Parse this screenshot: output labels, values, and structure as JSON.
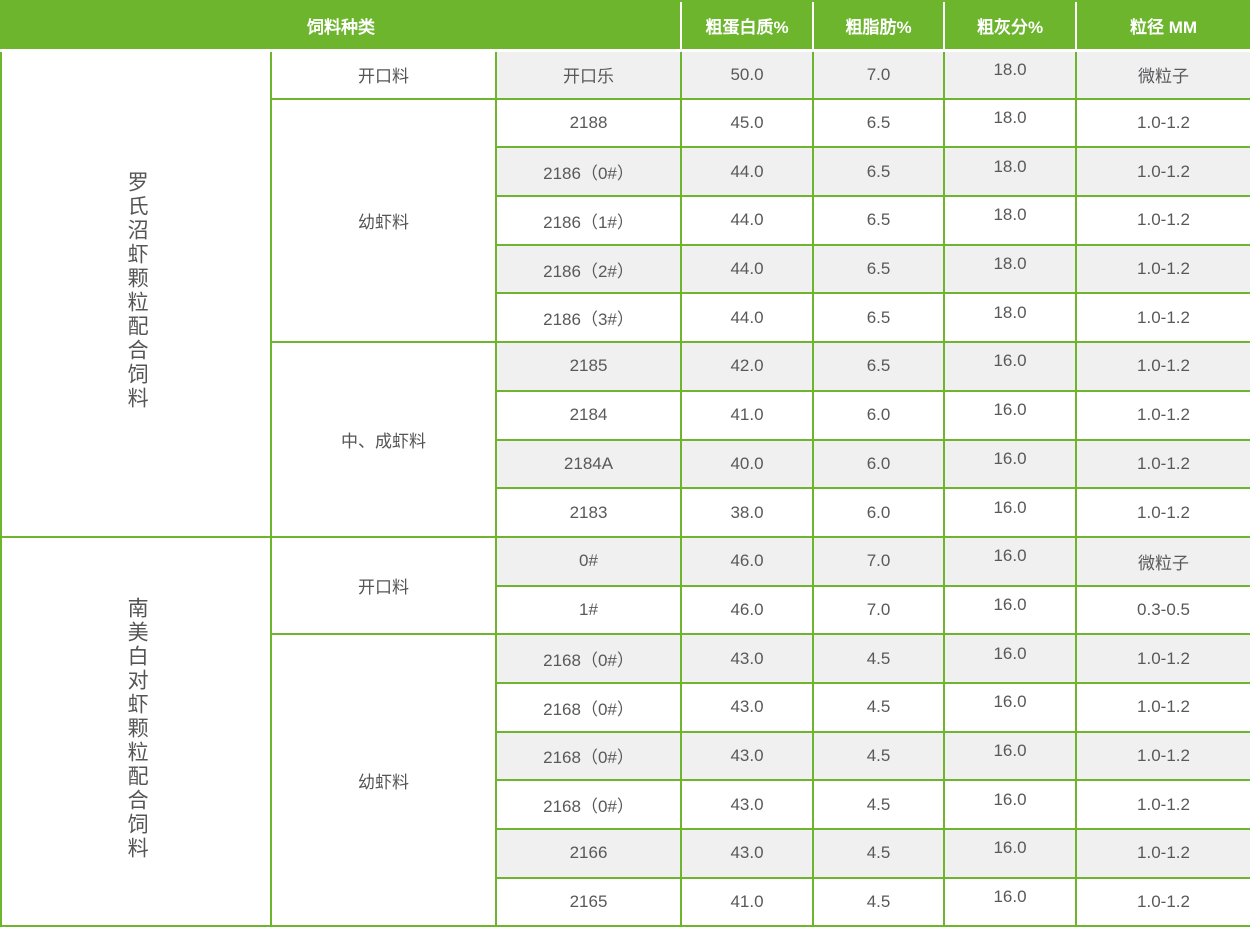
{
  "header": {
    "feed_type": "饲料种类",
    "protein": "粗蛋白质%",
    "fat": "粗脂肪%",
    "ash": "粗灰分%",
    "size": "粒径 MM"
  },
  "groups": [
    {
      "name": "罗氏沼虾颗粒配合饲料",
      "subgroups": [
        {
          "name": "开口料",
          "rows": [
            {
              "product": "开口乐",
              "protein": "50.0",
              "fat": "7.0",
              "ash": "18.0",
              "size": "微粒子"
            }
          ]
        },
        {
          "name": "幼虾料",
          "rows": [
            {
              "product": "2188",
              "protein": "45.0",
              "fat": "6.5",
              "ash": "18.0",
              "size": "1.0-1.2"
            },
            {
              "product": "2186（0#）",
              "protein": "44.0",
              "fat": "6.5",
              "ash": "18.0",
              "size": "1.0-1.2"
            },
            {
              "product": "2186（1#）",
              "protein": "44.0",
              "fat": "6.5",
              "ash": "18.0",
              "size": "1.0-1.2"
            },
            {
              "product": "2186（2#）",
              "protein": "44.0",
              "fat": "6.5",
              "ash": "18.0",
              "size": "1.0-1.2"
            },
            {
              "product": "2186（3#）",
              "protein": "44.0",
              "fat": "6.5",
              "ash": "18.0",
              "size": "1.0-1.2"
            }
          ]
        },
        {
          "name": "中、成虾料",
          "rows": [
            {
              "product": "2185",
              "protein": "42.0",
              "fat": "6.5",
              "ash": "16.0",
              "size": "1.0-1.2"
            },
            {
              "product": "2184",
              "protein": "41.0",
              "fat": "6.0",
              "ash": "16.0",
              "size": "1.0-1.2"
            },
            {
              "product": "2184A",
              "protein": "40.0",
              "fat": "6.0",
              "ash": "16.0",
              "size": "1.0-1.2"
            },
            {
              "product": "2183",
              "protein": "38.0",
              "fat": "6.0",
              "ash": "16.0",
              "size": "1.0-1.2"
            }
          ]
        }
      ]
    },
    {
      "name": "南美白对虾颗粒配合饲料",
      "subgroups": [
        {
          "name": "开口料",
          "rows": [
            {
              "product": "0#",
              "protein": "46.0",
              "fat": "7.0",
              "ash": "16.0",
              "size": "微粒子"
            },
            {
              "product": "1#",
              "protein": "46.0",
              "fat": "7.0",
              "ash": "16.0",
              "size": "0.3-0.5"
            }
          ]
        },
        {
          "name": "幼虾料",
          "rows": [
            {
              "product": "2168（0#）",
              "protein": "43.0",
              "fat": "4.5",
              "ash": "16.0",
              "size": "1.0-1.2"
            },
            {
              "product": "2168（0#）",
              "protein": "43.0",
              "fat": "4.5",
              "ash": "16.0",
              "size": "1.0-1.2"
            },
            {
              "product": "2168（0#）",
              "protein": "43.0",
              "fat": "4.5",
              "ash": "16.0",
              "size": "1.0-1.2"
            },
            {
              "product": "2168（0#）",
              "protein": "43.0",
              "fat": "4.5",
              "ash": "16.0",
              "size": "1.0-1.2"
            },
            {
              "product": "2166",
              "protein": "43.0",
              "fat": "4.5",
              "ash": "16.0",
              "size": "1.0-1.2"
            },
            {
              "product": "2165",
              "protein": "41.0",
              "fat": "4.5",
              "ash": "16.0",
              "size": "1.0-1.2"
            }
          ]
        }
      ]
    }
  ],
  "colors": {
    "header_background": "#6CB52D",
    "grid_line": "#6CB52D",
    "alt_row_background": "#F0F0F0",
    "header_text": "#FFFFFF",
    "body_text": "#58595B"
  }
}
